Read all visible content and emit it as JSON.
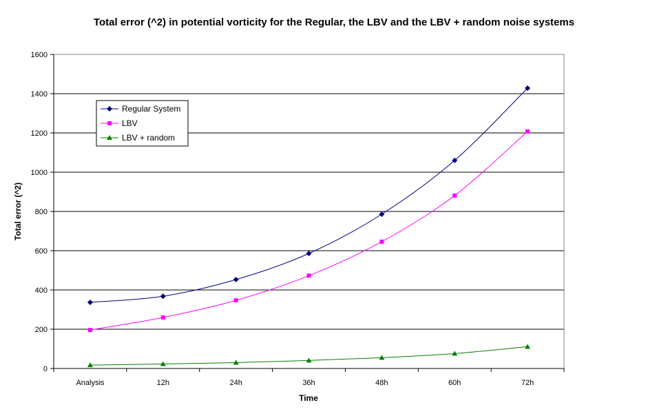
{
  "chart_data": {
    "type": "line",
    "title": "Total error (^2) in potential vorticity for the Regular, the LBV and the LBV + random noise systems",
    "xlabel": "Time",
    "ylabel": "Total error (^2)",
    "categories": [
      "Analysis",
      "12h",
      "24h",
      "36h",
      "48h",
      "60h",
      "72h"
    ],
    "ylim": [
      0,
      1600
    ],
    "yticks": [
      0,
      200,
      400,
      600,
      800,
      1000,
      1200,
      1400,
      1600
    ],
    "grid": "horizontal",
    "legend_position": "upper-left",
    "series": [
      {
        "name": "Regular System",
        "color": "#000080",
        "marker": "diamond",
        "values": [
          337,
          368,
          453,
          586,
          786,
          1060,
          1428
        ]
      },
      {
        "name": "LBV",
        "color": "#ff00ff",
        "marker": "square",
        "values": [
          196,
          260,
          347,
          473,
          646,
          881,
          1208
        ]
      },
      {
        "name": "LBV + random",
        "color": "#008000",
        "marker": "triangle",
        "values": [
          17,
          23,
          30,
          41,
          55,
          76,
          111
        ]
      }
    ]
  }
}
